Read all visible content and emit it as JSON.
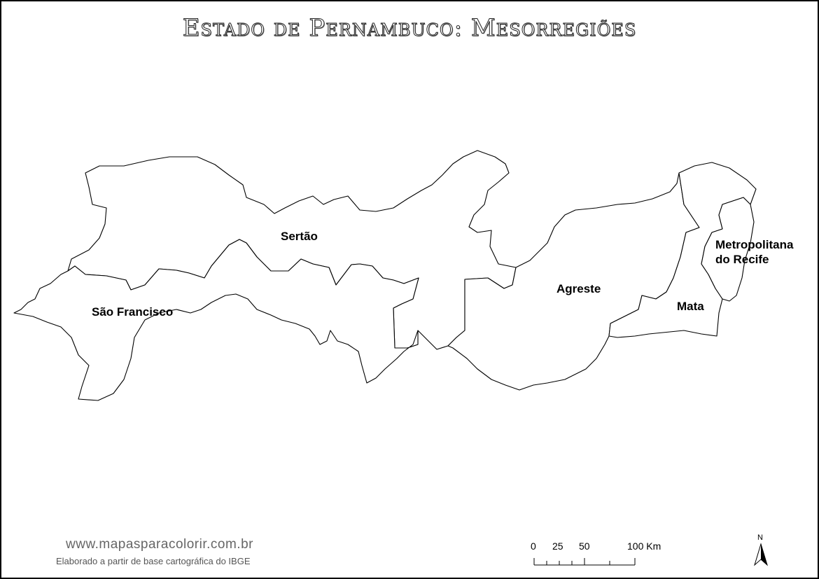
{
  "title": "Estado de Pernambuco: Mesorregiões",
  "regions": {
    "sao_francisco": "São Francisco",
    "sertao": "Sertão",
    "agreste": "Agreste",
    "mata": "Mata",
    "metropolitana_line1": "Metropolitana",
    "metropolitana_line2": "do Recife"
  },
  "footer": {
    "site": "www.mapasparacolorir.com.br",
    "credit": "Elaborado a partir de base cartográfica do IBGE"
  },
  "scale_bar": {
    "ticks": [
      "0",
      "25",
      "50",
      "100 Km"
    ]
  },
  "north_arrow": {
    "letter": "N",
    "icon": "north-arrow-icon"
  }
}
